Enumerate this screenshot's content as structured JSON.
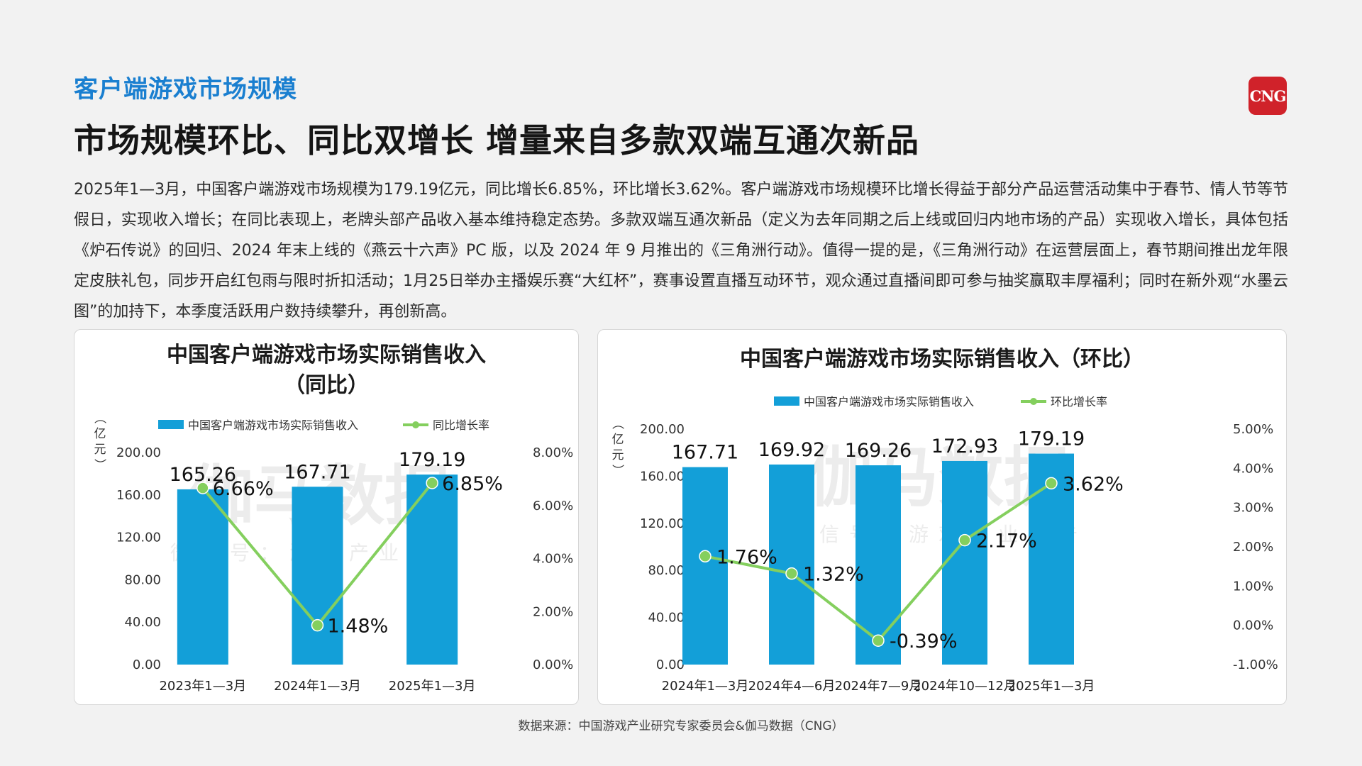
{
  "header": {
    "section_title": "客户端游戏市场规模",
    "headline": "市场规模环比、同比双增长 增量来自多款双端互通次新品",
    "logo_text": "CNG",
    "logo_icon": "cng-logo-icon"
  },
  "body_text": "2025年1—3月，中国客户端游戏市场规模为179.19亿元，同比增长6.85%，环比增长3.62%。客户端游戏市场规模环比增长得益于部分产品运营活动集中于春节、情人节等节假日，实现收入增长；在同比表现上，老牌头部产品收入基本维持稳定态势。多款双端互通次新品（定义为去年同期之后上线或回归内地市场的产品）实现收入增长，具体包括《炉石传说》的回归、2024 年末上线的《燕云十六声》PC 版，以及 2024 年 9 月推出的《三角洲行动》。值得一提的是，《三角洲行动》在运营层面上，春节期间推出龙年限定皮肤礼包，同步开启红包雨与限时折扣活动；1月25日举办主播娱乐赛“大红杯”，赛事设置直播互动环节，观众通过直播间即可参与抽奖赢取丰厚福利；同时在新外观“水墨云图”的加持下，本季度活跃用户数持续攀升，再创新高。",
  "watermark": {
    "main": "伽马数据",
    "sub": "微信号：游戏产业报告"
  },
  "colors": {
    "bar": "#139fd8",
    "line": "#84cf5e",
    "title_blue": "#1a7fd0",
    "logo_red": "#d0222a"
  },
  "chart_data": [
    {
      "type": "bar",
      "title_line1": "中国客户端游戏市场实际销售收入",
      "title_line2": "（同比）",
      "unit": "（亿元）",
      "categories": [
        "2023年1—3月",
        "2024年1—3月",
        "2025年1—3月"
      ],
      "series": [
        {
          "name": "中国客户端游戏市场实际销售收入",
          "kind": "bar",
          "values": [
            165.26,
            167.71,
            179.19
          ],
          "labels": [
            "165.26",
            "167.71",
            "179.19"
          ]
        },
        {
          "name": "同比增长率",
          "kind": "line",
          "values": [
            6.66,
            1.48,
            6.85
          ],
          "labels": [
            "6.66%",
            "1.48%",
            "6.85%"
          ]
        }
      ],
      "y_left": {
        "min": 0,
        "max": 200,
        "ticks": [
          "0.00",
          "40.00",
          "80.00",
          "120.00",
          "160.00",
          "200.00"
        ]
      },
      "y_right": {
        "min": 0,
        "max": 8,
        "ticks": [
          "0.00%",
          "2.00%",
          "4.00%",
          "6.00%",
          "8.00%"
        ]
      },
      "legend": "top-center"
    },
    {
      "type": "bar",
      "title_line1": "中国客户端游戏市场实际销售收入（环比）",
      "categories": [
        "2024年1—3月",
        "2024年4—6月",
        "2024年7—9月",
        "2024年10—12月",
        "2025年1—3月"
      ],
      "series": [
        {
          "name": "中国客户端游戏市场实际销售收入",
          "kind": "bar",
          "values": [
            167.71,
            169.92,
            169.26,
            172.93,
            179.19
          ],
          "labels": [
            "167.71",
            "169.92",
            "169.26",
            "172.93",
            "179.19"
          ]
        },
        {
          "name": "环比增长率",
          "kind": "line",
          "values": [
            1.76,
            1.32,
            -0.39,
            2.17,
            3.62
          ],
          "labels": [
            "1.76%",
            "1.32%",
            "-0.39%",
            "2.17%",
            "3.62%"
          ]
        }
      ],
      "unit": "（亿元）",
      "y_left": {
        "min": 0,
        "max": 200,
        "ticks": [
          "0.00",
          "40.00",
          "80.00",
          "120.00",
          "160.00",
          "200.00"
        ]
      },
      "y_right": {
        "min": -1,
        "max": 5,
        "ticks": [
          "-1.00%",
          "0.00%",
          "1.00%",
          "2.00%",
          "3.00%",
          "4.00%",
          "5.00%"
        ]
      },
      "legend": "top-center"
    }
  ],
  "footer": {
    "source": "数据来源：中国游戏产业研究专家委员会&伽马数据（CNG）"
  }
}
